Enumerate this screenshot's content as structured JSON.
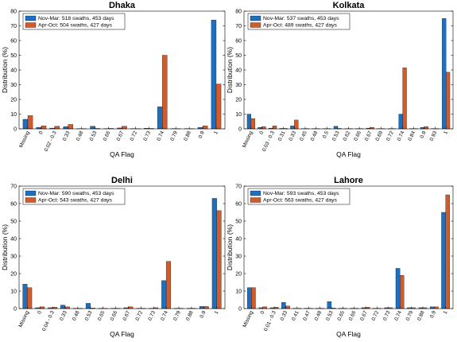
{
  "colors": {
    "series1": "#1f6fbf",
    "series2": "#d45a28"
  },
  "chart_data": [
    {
      "type": "bar",
      "title": "Dhaka",
      "xlabel": "QA Flag",
      "ylabel": "Distribution (%)",
      "ylim": [
        0,
        80
      ],
      "yticks": [
        0,
        10,
        20,
        30,
        40,
        50,
        60,
        70,
        80
      ],
      "legend_position": "top-left",
      "categories": [
        "Missing",
        "0",
        "0.02 - 0.3",
        "0.33",
        "0.48",
        "0.53",
        "0.66",
        "0.67",
        "0.72",
        "0.73",
        "0.74",
        "0.79",
        "0.88",
        "0.9",
        "1"
      ],
      "series": [
        {
          "name": "Nov-Mar: 518 swaths, 453 days",
          "values": [
            6.5,
            1.0,
            0.5,
            1.5,
            0.2,
            1.8,
            0.2,
            0.6,
            0.2,
            0.4,
            15,
            0.2,
            0.2,
            1.0,
            74
          ]
        },
        {
          "name": "Apr-Oct: 504 swaths, 427 days",
          "values": [
            9.0,
            2.0,
            1.8,
            3.0,
            0.2,
            0.3,
            0.3,
            1.8,
            0.2,
            0.3,
            50,
            0.2,
            0.2,
            2.0,
            30.5
          ]
        }
      ]
    },
    {
      "type": "bar",
      "title": "Kolkata",
      "xlabel": "QA Flag",
      "ylabel": "Distribution (%)",
      "ylim": [
        0,
        80
      ],
      "yticks": [
        0,
        10,
        20,
        30,
        40,
        50,
        60,
        70,
        80
      ],
      "legend_position": "top-left",
      "categories": [
        "Missing",
        "0",
        "0.03 - 0.3",
        "0.31",
        "0.33",
        "0.45",
        "0.48",
        "0.5",
        "0.53",
        "0.62",
        "0.66",
        "0.67",
        "0.69",
        "0.72",
        "0.74",
        "0.84",
        "0.9",
        "0.93",
        "1"
      ],
      "series": [
        {
          "name": "Nov-Mar: 537 swaths, 453 days",
          "values": [
            10,
            1.0,
            0.5,
            0.3,
            2.0,
            0.2,
            0.2,
            0.2,
            1.8,
            0.2,
            0.2,
            0.5,
            0.2,
            0.2,
            10,
            0.2,
            1.0,
            0.2,
            75
          ]
        },
        {
          "name": "Apr-Oct: 489 swaths, 427 days",
          "values": [
            7.0,
            1.5,
            2.0,
            0.3,
            6.0,
            0.2,
            0.2,
            0.2,
            0.3,
            0.2,
            0.2,
            1.0,
            0.2,
            0.2,
            41.5,
            0.2,
            1.5,
            0.2,
            38.5
          ]
        }
      ]
    },
    {
      "type": "bar",
      "title": "Delhi",
      "xlabel": "QA Flag",
      "ylabel": "Distribution (%)",
      "ylim": [
        0,
        70
      ],
      "yticks": [
        0,
        10,
        20,
        30,
        40,
        50,
        60,
        70
      ],
      "legend_position": "top-left",
      "categories": [
        "Missing",
        "0",
        "0.04 - 0.3",
        "0.33",
        "0.48",
        "0.53",
        "0.65",
        "0.66",
        "0.67",
        "0.72",
        "0.73",
        "0.74",
        "0.79",
        "0.88",
        "0.9",
        "1"
      ],
      "series": [
        {
          "name": "Nov-Mar: 590 swaths, 453 days",
          "values": [
            14,
            0.5,
            0.5,
            2.0,
            0.2,
            3.0,
            0.2,
            0.2,
            0.5,
            0.2,
            0.2,
            16,
            0.2,
            0.2,
            1.2,
            63
          ]
        },
        {
          "name": "Apr-Oct: 543 swaths, 427 days",
          "values": [
            12,
            1.0,
            0.8,
            1.0,
            0.2,
            0.3,
            0.2,
            0.2,
            1.0,
            0.2,
            0.5,
            27,
            0.2,
            0.2,
            1.2,
            56
          ]
        }
      ]
    },
    {
      "type": "bar",
      "title": "Lahore",
      "xlabel": "QA Flag",
      "ylabel": "Distribution (%)",
      "ylim": [
        0,
        70
      ],
      "yticks": [
        0,
        10,
        20,
        30,
        40,
        50,
        60,
        70
      ],
      "legend_position": "top-left",
      "categories": [
        "Missing",
        "0",
        "0.01 - 0.3",
        "0.33",
        "0.41",
        "0.47",
        "0.48",
        "0.53",
        "0.65",
        "0.66",
        "0.67",
        "0.72",
        "0.73",
        "0.74",
        "0.79",
        "0.88",
        "0.9",
        "1"
      ],
      "series": [
        {
          "name": "Nov-Mar: 593 swaths, 453 days",
          "values": [
            12,
            0.5,
            0.5,
            3.5,
            0.2,
            0.2,
            0.2,
            4.0,
            0.2,
            0.2,
            0.5,
            0.2,
            0.5,
            23,
            0.5,
            0.5,
            1.0,
            55
          ]
        },
        {
          "name": "Apr-Oct: 563 swaths, 427 days",
          "values": [
            12,
            1.0,
            0.8,
            1.5,
            0.2,
            0.2,
            0.2,
            0.3,
            0.2,
            0.2,
            0.8,
            0.2,
            0.5,
            19,
            0.5,
            0.5,
            1.0,
            65
          ]
        }
      ]
    }
  ]
}
